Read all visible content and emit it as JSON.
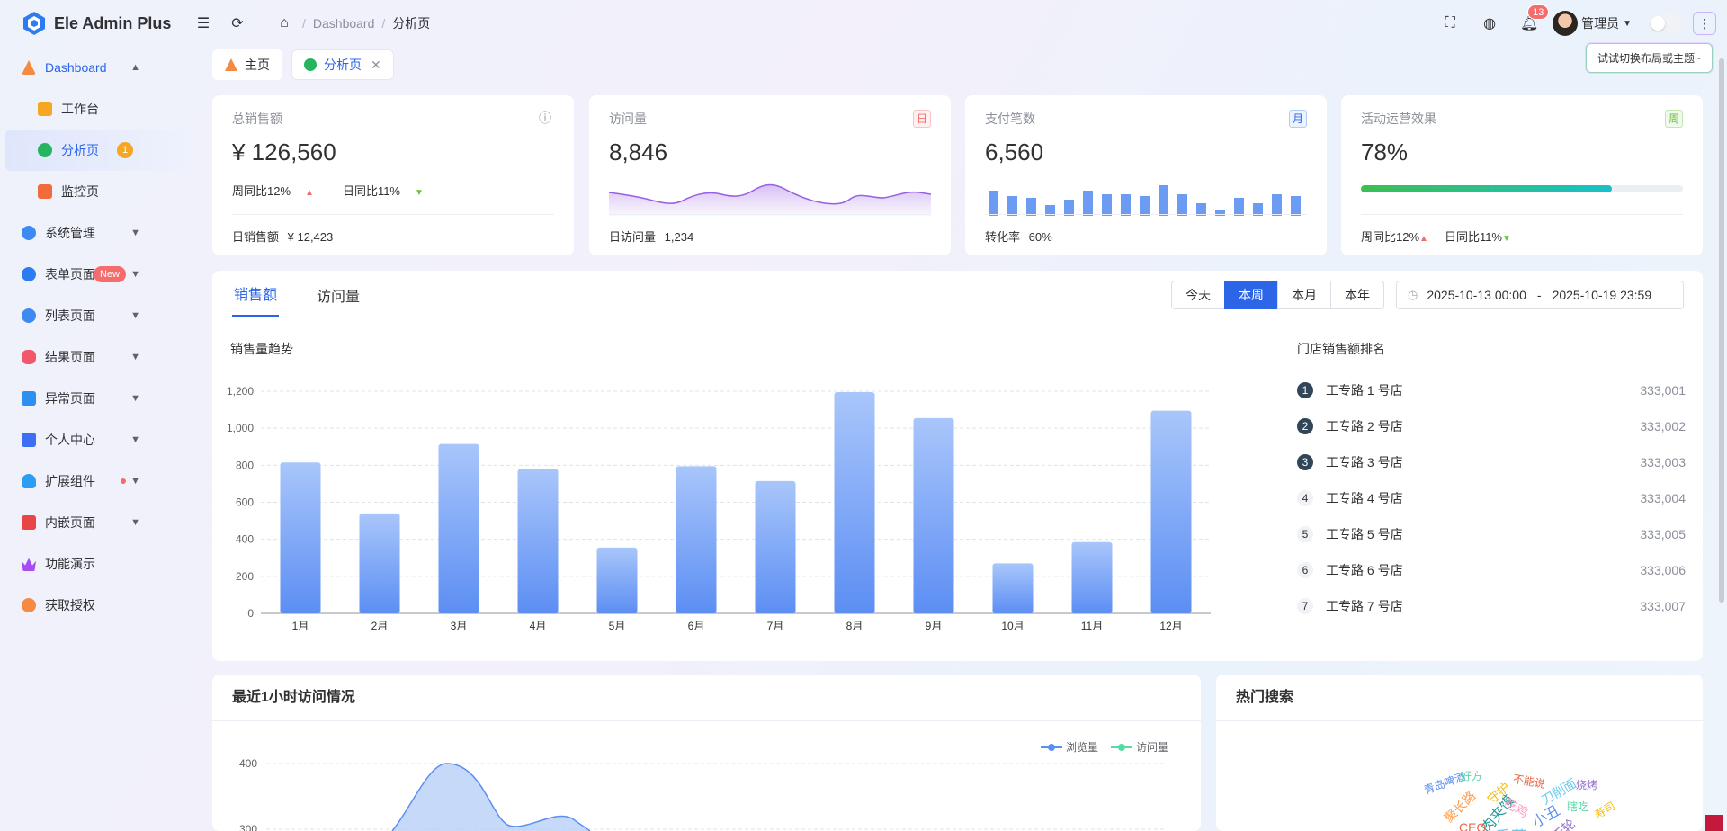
{
  "app": {
    "title": "Ele Admin Plus"
  },
  "breadcrumb": [
    "Dashboard",
    "分析页"
  ],
  "header": {
    "notifications": "13",
    "user": "管理员"
  },
  "tooltip": "试试切换布局或主题~",
  "sidebar": {
    "items": [
      {
        "label": "Dashboard",
        "icon": "dashboard-icon",
        "color": "#f58a42"
      },
      {
        "label": "工作台",
        "icon": "workbench-icon",
        "color": "#f5a623"
      },
      {
        "label": "分析页",
        "icon": "analysis-icon",
        "color": "#27b45f",
        "badge": "1"
      },
      {
        "label": "监控页",
        "icon": "monitor-icon",
        "color": "#f26b3a"
      },
      {
        "label": "系统管理",
        "icon": "system-icon",
        "color": "#3d8bf2"
      },
      {
        "label": "表单页面",
        "icon": "form-icon",
        "color": "#2b7cf0",
        "badge": "New"
      },
      {
        "label": "列表页面",
        "icon": "list-icon",
        "color": "#3d8bf2"
      },
      {
        "label": "结果页面",
        "icon": "result-icon",
        "color": "#f2576a"
      },
      {
        "label": "异常页面",
        "icon": "exception-icon",
        "color": "#2c8ff2"
      },
      {
        "label": "个人中心",
        "icon": "user-center-icon",
        "color": "#3d6ff2"
      },
      {
        "label": "扩展组件",
        "icon": "extension-icon",
        "color": "#2c9df2"
      },
      {
        "label": "内嵌页面",
        "icon": "iframe-icon",
        "color": "#e84545"
      },
      {
        "label": "功能演示",
        "icon": "demo-icon",
        "color": "#a34df2"
      },
      {
        "label": "获取授权",
        "icon": "license-icon",
        "color": "#f58a42"
      }
    ]
  },
  "tabs": [
    {
      "label": "主页",
      "icon": "home-tab-icon"
    },
    {
      "label": "分析页",
      "icon": "analysis-tab-icon"
    }
  ],
  "stats": [
    {
      "title": "总销售额",
      "value": "¥ 126,560",
      "week": "周同比12%",
      "day": "日同比11%",
      "footer_label": "日销售额",
      "footer_value": "¥ 12,423"
    },
    {
      "title": "访问量",
      "value": "8,846",
      "tag": "日",
      "footer_label": "日访问量",
      "footer_value": "1,234"
    },
    {
      "title": "支付笔数",
      "value": "6,560",
      "tag": "月",
      "footer_label": "转化率",
      "footer_value": "60%"
    },
    {
      "title": "活动运营效果",
      "value": "78%",
      "tag": "周",
      "progress": 0.78,
      "week": "周同比12%",
      "day": "日同比11%"
    }
  ],
  "main_tabs": [
    "销售额",
    "访问量"
  ],
  "range_buttons": [
    "今天",
    "本周",
    "本月",
    "本年"
  ],
  "date_range": {
    "start": "2025-10-13 00:00",
    "sep": "-",
    "end": "2025-10-19 23:59"
  },
  "sales_title": "销售量趋势",
  "rank_title": "门店销售额排名",
  "ranking": [
    {
      "rank": "1",
      "name": "工专路 1 号店",
      "value": "333,001"
    },
    {
      "rank": "2",
      "name": "工专路 2 号店",
      "value": "333,002"
    },
    {
      "rank": "3",
      "name": "工专路 3 号店",
      "value": "333,003"
    },
    {
      "rank": "4",
      "name": "工专路 4 号店",
      "value": "333,004"
    },
    {
      "rank": "5",
      "name": "工专路 5 号店",
      "value": "333,005"
    },
    {
      "rank": "6",
      "name": "工专路 6 号店",
      "value": "333,006"
    },
    {
      "rank": "7",
      "name": "工专路 7 号店",
      "value": "333,007"
    }
  ],
  "chart_data": [
    {
      "type": "bar",
      "title": "销售量趋势",
      "categories": [
        "1月",
        "2月",
        "3月",
        "4月",
        "5月",
        "6月",
        "7月",
        "8月",
        "9月",
        "10月",
        "11月",
        "12月"
      ],
      "values": [
        815,
        540,
        915,
        780,
        355,
        795,
        715,
        1195,
        1055,
        270,
        385,
        1095
      ],
      "ylim": [
        0,
        1200
      ],
      "yticks": [
        "0",
        "200",
        "400",
        "600",
        "800",
        "1,000",
        "1,200"
      ],
      "grid": true
    },
    {
      "type": "area",
      "title": "最近1小时访问情况",
      "legend": [
        "浏览量",
        "访问量"
      ],
      "yticks": [
        "300",
        "400"
      ]
    }
  ],
  "visit_chart": {
    "title": "最近1小时访问情况",
    "legend": [
      "浏览量",
      "访问量"
    ],
    "yticks": [
      "400",
      "300"
    ]
  },
  "hot_title": "热门搜索",
  "wordcloud": [
    "青岛啤酒",
    "好方",
    "守护",
    "不能说",
    "刀削面",
    "烧烤",
    "聚长路",
    "肉夹馍",
    "吃鸡",
    "小丑",
    "瞎吃",
    "寿司",
    "CEO",
    "香菜",
    "摩天轮"
  ],
  "colors": {
    "accent": "#2c65e8",
    "bar": "#7fa7f5",
    "progress": "#27c38a",
    "up": "#f56c6c",
    "down": "#67c23a"
  }
}
